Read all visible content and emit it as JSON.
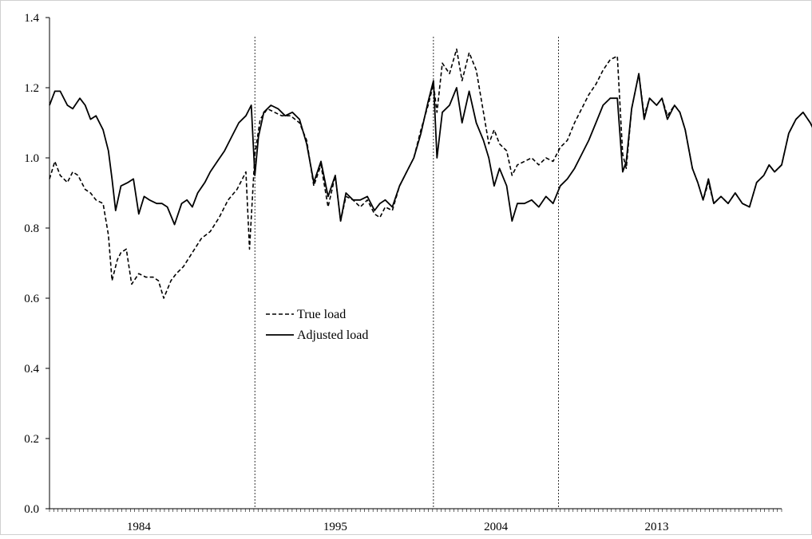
{
  "chart_data": {
    "type": "line",
    "title": "",
    "xlabel": "",
    "ylabel": "",
    "ylim": [
      0.0,
      1.4
    ],
    "y_ticks": [
      "0.0",
      "0.2",
      "0.4",
      "0.6",
      "0.8",
      "1.0",
      "1.2",
      "1.4"
    ],
    "y_tick_values": [
      0.0,
      0.2,
      0.4,
      0.6,
      0.8,
      1.0,
      1.2,
      1.4
    ],
    "x_tick_labels": [
      "1984",
      "1995",
      "2004",
      "2013"
    ],
    "x_tick_label_positions": [
      1984,
      1995,
      2004,
      2013
    ],
    "x_range": [
      1979,
      2020
    ],
    "grid": false,
    "legend": "center-left",
    "vertical_markers": [
      1990.5,
      2000.5,
      2007.5
    ],
    "series": [
      {
        "name": "True load",
        "style": "dashed",
        "color": "#000000",
        "points": [
          [
            1979.0,
            0.94
          ],
          [
            1979.3,
            0.99
          ],
          [
            1979.6,
            0.95
          ],
          [
            1980.0,
            0.93
          ],
          [
            1980.3,
            0.96
          ],
          [
            1980.6,
            0.95
          ],
          [
            1981.0,
            0.91
          ],
          [
            1981.3,
            0.9
          ],
          [
            1981.6,
            0.88
          ],
          [
            1982.0,
            0.87
          ],
          [
            1982.3,
            0.78
          ],
          [
            1982.5,
            0.65
          ],
          [
            1982.8,
            0.71
          ],
          [
            1983.0,
            0.73
          ],
          [
            1983.3,
            0.74
          ],
          [
            1983.6,
            0.64
          ],
          [
            1984.0,
            0.67
          ],
          [
            1984.4,
            0.66
          ],
          [
            1984.8,
            0.66
          ],
          [
            1985.1,
            0.65
          ],
          [
            1985.4,
            0.6
          ],
          [
            1985.8,
            0.65
          ],
          [
            1986.1,
            0.67
          ],
          [
            1986.5,
            0.69
          ],
          [
            1987.0,
            0.73
          ],
          [
            1987.5,
            0.77
          ],
          [
            1988.0,
            0.79
          ],
          [
            1988.5,
            0.83
          ],
          [
            1989.0,
            0.88
          ],
          [
            1989.5,
            0.91
          ],
          [
            1989.8,
            0.94
          ],
          [
            1990.0,
            0.96
          ],
          [
            1990.2,
            0.74
          ],
          [
            1990.5,
            1.01
          ],
          [
            1990.8,
            1.11
          ],
          [
            1991.2,
            1.14
          ],
          [
            1991.6,
            1.13
          ],
          [
            1992.0,
            1.12
          ],
          [
            1992.5,
            1.12
          ],
          [
            1993.0,
            1.1
          ],
          [
            1993.4,
            1.05
          ],
          [
            1993.8,
            0.92
          ],
          [
            1994.2,
            0.98
          ],
          [
            1994.6,
            0.86
          ],
          [
            1995.0,
            0.95
          ],
          [
            1995.3,
            0.82
          ],
          [
            1995.6,
            0.89
          ],
          [
            1996.0,
            0.88
          ],
          [
            1996.4,
            0.86
          ],
          [
            1996.8,
            0.88
          ],
          [
            1997.2,
            0.84
          ],
          [
            1997.5,
            0.83
          ],
          [
            1997.8,
            0.86
          ],
          [
            1998.2,
            0.85
          ],
          [
            1998.6,
            0.92
          ],
          [
            1999.0,
            0.96
          ],
          [
            1999.4,
            1.0
          ],
          [
            1999.8,
            1.08
          ],
          [
            2000.2,
            1.15
          ],
          [
            2000.5,
            1.21
          ],
          [
            2000.7,
            1.13
          ],
          [
            2001.0,
            1.27
          ],
          [
            2001.4,
            1.24
          ],
          [
            2001.8,
            1.31
          ],
          [
            2002.1,
            1.22
          ],
          [
            2002.5,
            1.3
          ],
          [
            2002.9,
            1.25
          ],
          [
            2003.3,
            1.13
          ],
          [
            2003.6,
            1.04
          ],
          [
            2003.9,
            1.08
          ],
          [
            2004.2,
            1.04
          ],
          [
            2004.6,
            1.02
          ],
          [
            2004.9,
            0.95
          ],
          [
            2005.2,
            0.98
          ],
          [
            2005.6,
            0.99
          ],
          [
            2006.0,
            1.0
          ],
          [
            2006.4,
            0.98
          ],
          [
            2006.8,
            1.0
          ],
          [
            2007.2,
            0.99
          ],
          [
            2007.6,
            1.03
          ],
          [
            2008.0,
            1.05
          ],
          [
            2008.4,
            1.1
          ],
          [
            2008.8,
            1.14
          ],
          [
            2009.2,
            1.18
          ],
          [
            2009.6,
            1.21
          ],
          [
            2010.0,
            1.25
          ],
          [
            2010.4,
            1.28
          ],
          [
            2010.8,
            1.29
          ],
          [
            2011.1,
            1.01
          ],
          [
            2011.3,
            0.97
          ],
          [
            2011.6,
            1.14
          ],
          [
            2012.0,
            1.24
          ],
          [
            2012.3,
            1.12
          ],
          [
            2012.6,
            1.17
          ],
          [
            2013.0,
            1.15
          ],
          [
            2013.3,
            1.17
          ],
          [
            2013.6,
            1.12
          ],
          [
            2014.0,
            1.15
          ],
          [
            2014.3,
            1.13
          ],
          [
            2014.6,
            1.08
          ],
          [
            2015.0,
            0.97
          ],
          [
            2015.3,
            0.93
          ],
          [
            2015.6,
            0.88
          ],
          [
            2015.9,
            0.93
          ],
          [
            2016.2,
            0.87
          ],
          [
            2016.6,
            0.89
          ],
          [
            2017.0,
            0.87
          ],
          [
            2017.4,
            0.9
          ],
          [
            2017.8,
            0.87
          ],
          [
            2018.2,
            0.86
          ],
          [
            2018.6,
            0.93
          ],
          [
            2019.0,
            0.95
          ],
          [
            2019.3,
            0.98
          ],
          [
            2019.6,
            0.96
          ],
          [
            2020.0,
            0.98
          ],
          [
            2020.4,
            1.07
          ],
          [
            2020.8,
            1.11
          ],
          [
            2021.2,
            1.13
          ],
          [
            2021.6,
            1.1
          ],
          [
            2021.8,
            1.08
          ],
          [
            2022.0,
            0.96
          ]
        ]
      },
      {
        "name": "Adjusted load",
        "style": "solid",
        "color": "#000000",
        "points": [
          [
            1979.0,
            1.15
          ],
          [
            1979.3,
            1.19
          ],
          [
            1979.6,
            1.19
          ],
          [
            1980.0,
            1.15
          ],
          [
            1980.3,
            1.14
          ],
          [
            1980.7,
            1.17
          ],
          [
            1981.0,
            1.15
          ],
          [
            1981.3,
            1.11
          ],
          [
            1981.6,
            1.12
          ],
          [
            1982.0,
            1.08
          ],
          [
            1982.3,
            1.02
          ],
          [
            1982.5,
            0.94
          ],
          [
            1982.7,
            0.85
          ],
          [
            1983.0,
            0.92
          ],
          [
            1983.4,
            0.93
          ],
          [
            1983.7,
            0.94
          ],
          [
            1984.0,
            0.84
          ],
          [
            1984.3,
            0.89
          ],
          [
            1984.6,
            0.88
          ],
          [
            1985.0,
            0.87
          ],
          [
            1985.3,
            0.87
          ],
          [
            1985.6,
            0.86
          ],
          [
            1986.0,
            0.81
          ],
          [
            1986.4,
            0.87
          ],
          [
            1986.7,
            0.88
          ],
          [
            1987.0,
            0.86
          ],
          [
            1987.3,
            0.9
          ],
          [
            1987.7,
            0.93
          ],
          [
            1988.0,
            0.96
          ],
          [
            1988.4,
            0.99
          ],
          [
            1988.8,
            1.02
          ],
          [
            1989.2,
            1.06
          ],
          [
            1989.6,
            1.1
          ],
          [
            1990.0,
            1.12
          ],
          [
            1990.3,
            1.15
          ],
          [
            1990.5,
            0.95
          ],
          [
            1990.7,
            1.06
          ],
          [
            1991.0,
            1.13
          ],
          [
            1991.4,
            1.15
          ],
          [
            1991.8,
            1.14
          ],
          [
            1992.2,
            1.12
          ],
          [
            1992.6,
            1.13
          ],
          [
            1993.0,
            1.11
          ],
          [
            1993.4,
            1.04
          ],
          [
            1993.8,
            0.93
          ],
          [
            1994.2,
            0.99
          ],
          [
            1994.6,
            0.89
          ],
          [
            1995.0,
            0.95
          ],
          [
            1995.3,
            0.82
          ],
          [
            1995.6,
            0.9
          ],
          [
            1996.0,
            0.88
          ],
          [
            1996.4,
            0.88
          ],
          [
            1996.8,
            0.89
          ],
          [
            1997.2,
            0.85
          ],
          [
            1997.5,
            0.87
          ],
          [
            1997.8,
            0.88
          ],
          [
            1998.2,
            0.86
          ],
          [
            1998.6,
            0.92
          ],
          [
            1999.0,
            0.96
          ],
          [
            1999.4,
            1.0
          ],
          [
            1999.8,
            1.07
          ],
          [
            2000.2,
            1.16
          ],
          [
            2000.5,
            1.22
          ],
          [
            2000.7,
            1.0
          ],
          [
            2001.0,
            1.13
          ],
          [
            2001.4,
            1.15
          ],
          [
            2001.8,
            1.2
          ],
          [
            2002.1,
            1.1
          ],
          [
            2002.5,
            1.19
          ],
          [
            2002.9,
            1.1
          ],
          [
            2003.3,
            1.05
          ],
          [
            2003.6,
            1.0
          ],
          [
            2003.9,
            0.92
          ],
          [
            2004.2,
            0.97
          ],
          [
            2004.6,
            0.92
          ],
          [
            2004.9,
            0.82
          ],
          [
            2005.2,
            0.87
          ],
          [
            2005.6,
            0.87
          ],
          [
            2006.0,
            0.88
          ],
          [
            2006.4,
            0.86
          ],
          [
            2006.8,
            0.89
          ],
          [
            2007.2,
            0.87
          ],
          [
            2007.6,
            0.92
          ],
          [
            2008.0,
            0.94
          ],
          [
            2008.4,
            0.97
          ],
          [
            2008.8,
            1.01
          ],
          [
            2009.2,
            1.05
          ],
          [
            2009.6,
            1.1
          ],
          [
            2010.0,
            1.15
          ],
          [
            2010.4,
            1.17
          ],
          [
            2010.8,
            1.17
          ],
          [
            2011.1,
            0.96
          ],
          [
            2011.3,
            0.99
          ],
          [
            2011.6,
            1.14
          ],
          [
            2012.0,
            1.24
          ],
          [
            2012.3,
            1.11
          ],
          [
            2012.6,
            1.17
          ],
          [
            2013.0,
            1.15
          ],
          [
            2013.3,
            1.17
          ],
          [
            2013.6,
            1.11
          ],
          [
            2014.0,
            1.15
          ],
          [
            2014.3,
            1.13
          ],
          [
            2014.6,
            1.08
          ],
          [
            2015.0,
            0.97
          ],
          [
            2015.3,
            0.93
          ],
          [
            2015.6,
            0.88
          ],
          [
            2015.9,
            0.94
          ],
          [
            2016.2,
            0.87
          ],
          [
            2016.6,
            0.89
          ],
          [
            2017.0,
            0.87
          ],
          [
            2017.4,
            0.9
          ],
          [
            2017.8,
            0.87
          ],
          [
            2018.2,
            0.86
          ],
          [
            2018.6,
            0.93
          ],
          [
            2019.0,
            0.95
          ],
          [
            2019.3,
            0.98
          ],
          [
            2019.6,
            0.96
          ],
          [
            2020.0,
            0.98
          ],
          [
            2020.4,
            1.07
          ],
          [
            2020.8,
            1.11
          ],
          [
            2021.2,
            1.13
          ],
          [
            2021.6,
            1.1
          ],
          [
            2021.8,
            1.08
          ],
          [
            2022.0,
            0.95
          ]
        ]
      }
    ]
  }
}
